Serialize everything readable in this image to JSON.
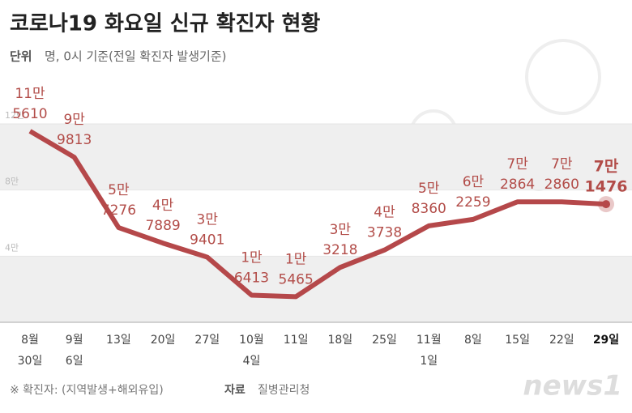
{
  "title": "코로나19 화요일 신규 확진자 현황",
  "subtitle": {
    "label": "단위",
    "text": "명, 0시 기준(전일 확진자 발생기준)"
  },
  "footer": {
    "note": "※ 확진자: (지역발생+해외유입)",
    "source_label": "자료",
    "source": "질병관리청"
  },
  "logo": "news1",
  "chart_data": {
    "type": "line",
    "categories": [
      [
        "8월",
        "30일"
      ],
      [
        "9월",
        "6일"
      ],
      [
        "13일"
      ],
      [
        "20일"
      ],
      [
        "27일"
      ],
      [
        "10월",
        "4일"
      ],
      [
        "11일"
      ],
      [
        "18일"
      ],
      [
        "25일"
      ],
      [
        "11월",
        "1일"
      ],
      [
        "8일"
      ],
      [
        "15일"
      ],
      [
        "22일"
      ],
      [
        "29일"
      ]
    ],
    "values": [
      115610,
      99813,
      57276,
      47889,
      39401,
      16413,
      15465,
      33218,
      43738,
      58360,
      62259,
      72864,
      72860,
      71476
    ],
    "value_labels": [
      [
        "11만",
        "5610"
      ],
      [
        "9만",
        "9813"
      ],
      [
        "5만",
        "7276"
      ],
      [
        "4만",
        "7889"
      ],
      [
        "3만",
        "9401"
      ],
      [
        "1만",
        "6413"
      ],
      [
        "1만",
        "5465"
      ],
      [
        "3만",
        "3218"
      ],
      [
        "4만",
        "3738"
      ],
      [
        "5만",
        "8360"
      ],
      [
        "6만",
        "2259"
      ],
      [
        "7만",
        "2864"
      ],
      [
        "7만",
        "2860"
      ],
      [
        "7만",
        "1476"
      ]
    ],
    "color": "#b5484a",
    "ylim": [
      0,
      120000
    ],
    "yticks": [
      {
        "value": 40000,
        "label": "4만"
      },
      {
        "value": 80000,
        "label": "8만"
      },
      {
        "value": 120000,
        "label": "12만"
      }
    ]
  }
}
